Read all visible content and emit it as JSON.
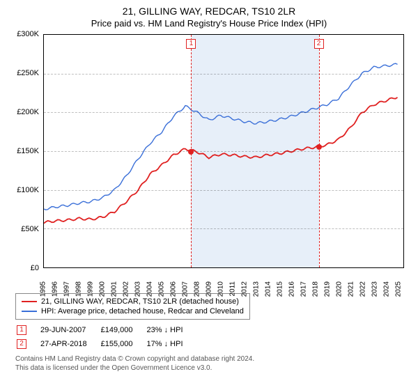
{
  "title": "21, GILLING WAY, REDCAR, TS10 2LR",
  "subtitle": "Price paid vs. HM Land Registry's House Price Index (HPI)",
  "chart": {
    "type": "line",
    "x_years": [
      1995,
      1996,
      1997,
      1998,
      1999,
      2000,
      2001,
      2002,
      2003,
      2004,
      2005,
      2006,
      2007,
      2008,
      2009,
      2010,
      2011,
      2012,
      2013,
      2014,
      2015,
      2016,
      2017,
      2018,
      2019,
      2020,
      2021,
      2022,
      2023,
      2024,
      2025
    ],
    "xlim": [
      1995,
      2025.5
    ],
    "ylim": [
      0,
      300000
    ],
    "ytick_step": 50000,
    "y_tick_labels": [
      "£0",
      "£50K",
      "£100K",
      "£150K",
      "£200K",
      "£250K",
      "£300K"
    ],
    "grid_color": "rgba(0,0,0,0.25)",
    "background_color": "#ffffff",
    "label_fontsize": 11,
    "tick_fontsize": 10,
    "band": {
      "start": 2007.5,
      "end": 2018.32,
      "fill": "rgba(160,190,230,0.25)"
    },
    "series": [
      {
        "key": "property",
        "label": "21, GILLING WAY, REDCAR, TS10 2LR (detached house)",
        "color": "#e02020",
        "line_width": 1.8,
        "y_by_year": [
          58000,
          60000,
          61000,
          63000,
          62000,
          65000,
          72000,
          85000,
          100000,
          120000,
          132000,
          145000,
          153000,
          149000,
          142000,
          146000,
          145000,
          143000,
          142000,
          145000,
          147000,
          150000,
          153000,
          155000,
          158000,
          165000,
          180000,
          200000,
          210000,
          215000,
          220000
        ]
      },
      {
        "key": "hpi",
        "label": "HPI: Average price, detached house, Redcar and Cleveland",
        "color": "#3a6fd8",
        "line_width": 1.4,
        "y_by_year": [
          75000,
          78000,
          80000,
          83000,
          85000,
          90000,
          100000,
          118000,
          140000,
          160000,
          175000,
          195000,
          208000,
          200000,
          190000,
          196000,
          192000,
          188000,
          186000,
          188000,
          191000,
          195000,
          200000,
          205000,
          210000,
          218000,
          235000,
          250000,
          258000,
          260000,
          262000
        ]
      }
    ],
    "sales": [
      {
        "index": 1,
        "year": 2007.5,
        "price": 149000,
        "date": "29-JUN-2007",
        "price_str": "£149,000",
        "delta_str": "23% ↓ HPI"
      },
      {
        "index": 2,
        "year": 2018.32,
        "price": 155000,
        "date": "27-APR-2018",
        "price_str": "£155,000",
        "delta_str": "17% ↓ HPI"
      }
    ]
  },
  "footer": {
    "line1": "Contains HM Land Registry data © Crown copyright and database right 2024.",
    "line2": "This data is licensed under the Open Government Licence v3.0."
  }
}
